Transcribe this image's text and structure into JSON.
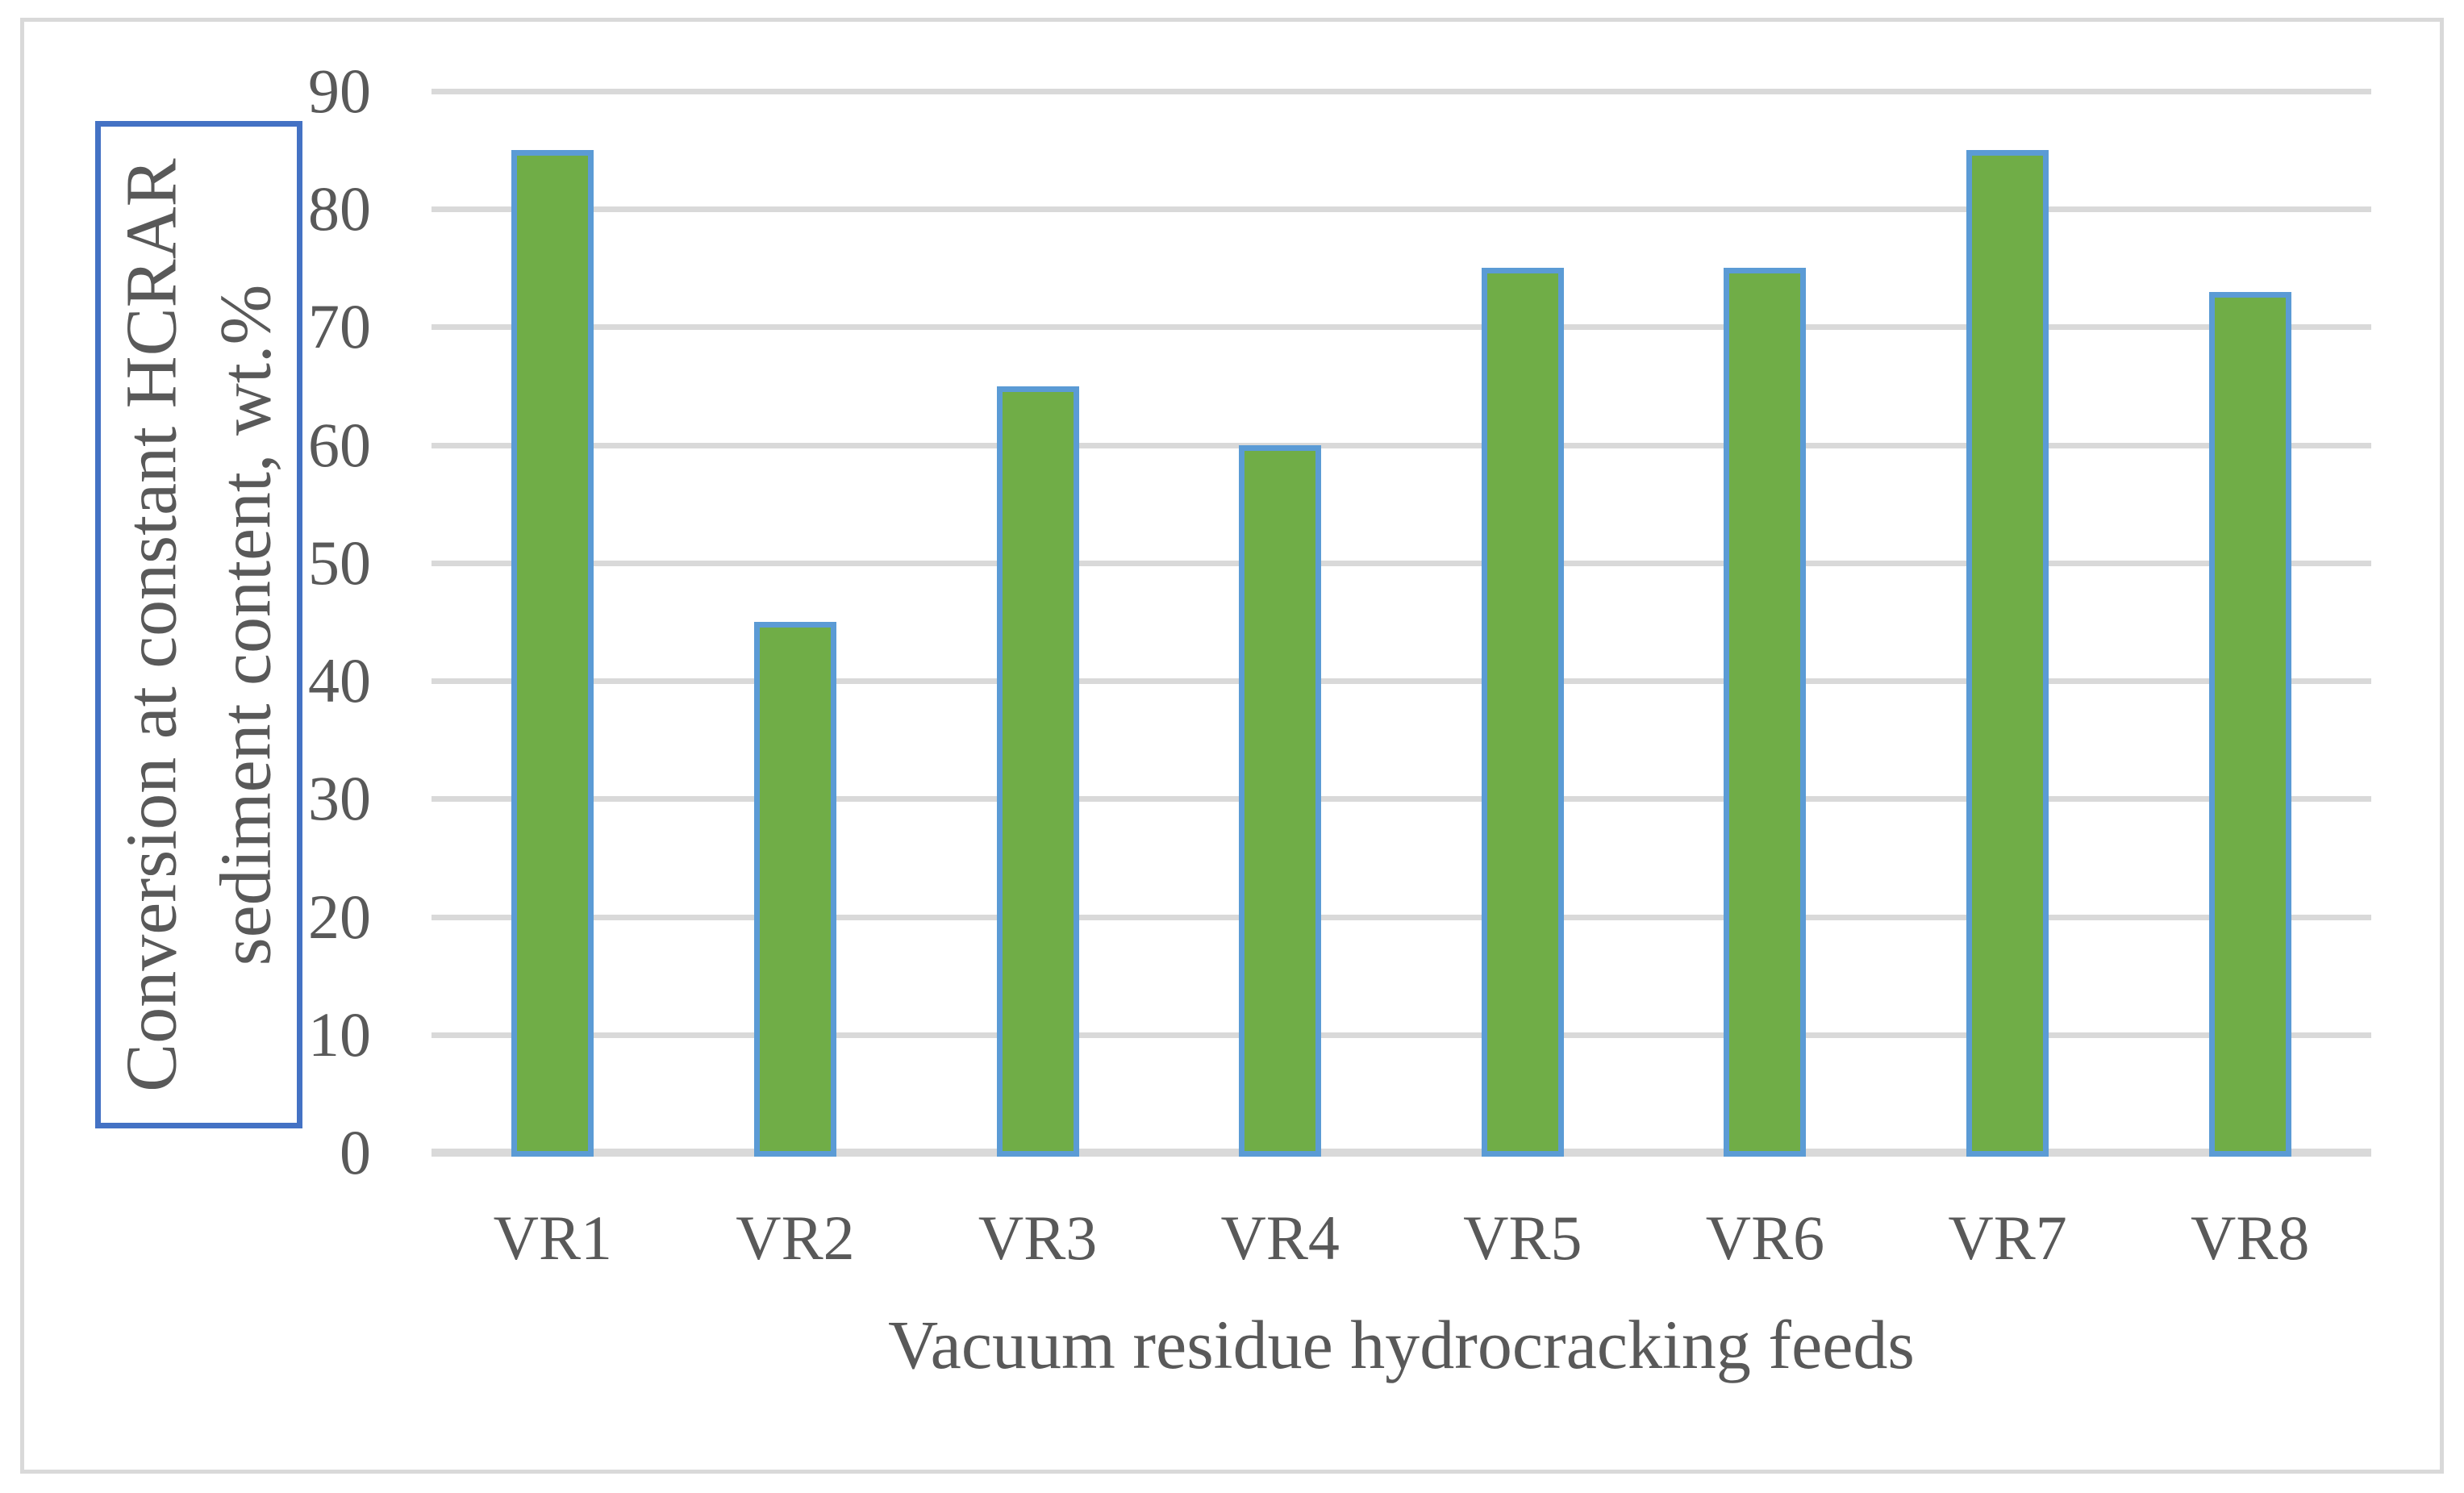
{
  "chart_data": {
    "type": "bar",
    "categories": [
      "VR1",
      "VR2",
      "VR3",
      "VR4",
      "VR5",
      "VR6",
      "VR7",
      "VR8"
    ],
    "values": [
      85,
      45,
      65,
      60,
      75,
      75,
      85,
      73
    ],
    "title": "",
    "xlabel": "Vacuum residue hydrocracking feeds",
    "ylabel": "Conversion at constant HCRAR sediment content, wt.%",
    "ylabel_lines": [
      "Conversion at constant HCRAR",
      "sediment content, wt.%"
    ],
    "ylim": [
      0,
      90
    ],
    "yticks": [
      0,
      10,
      20,
      30,
      40,
      50,
      60,
      70,
      80,
      90
    ],
    "grid": "horizontal",
    "legend": "none",
    "colors": {
      "bar_fill": "#70AD47",
      "bar_border": "#5B9BD5",
      "gridline": "#D9D9D9",
      "axis_line": "#D9D9D9",
      "text": "#595959",
      "ylabel_box_border": "#4472C4",
      "frame_border": "#D9D9D9"
    }
  }
}
